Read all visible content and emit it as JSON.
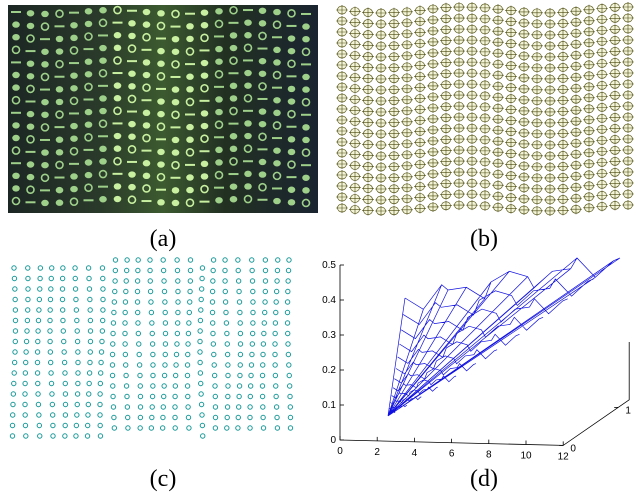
{
  "panels": [
    {
      "caption": "(a)"
    },
    {
      "caption": "(b)"
    },
    {
      "caption": "(c)"
    },
    {
      "caption": "(d)",
      "plot": {
        "yticks": [
          0,
          0.1,
          0.2,
          0.3,
          0.4,
          0.5
        ],
        "xticks": [
          0,
          2,
          4,
          6,
          8,
          10,
          12
        ],
        "zticks": [
          0,
          1
        ]
      }
    }
  ]
}
